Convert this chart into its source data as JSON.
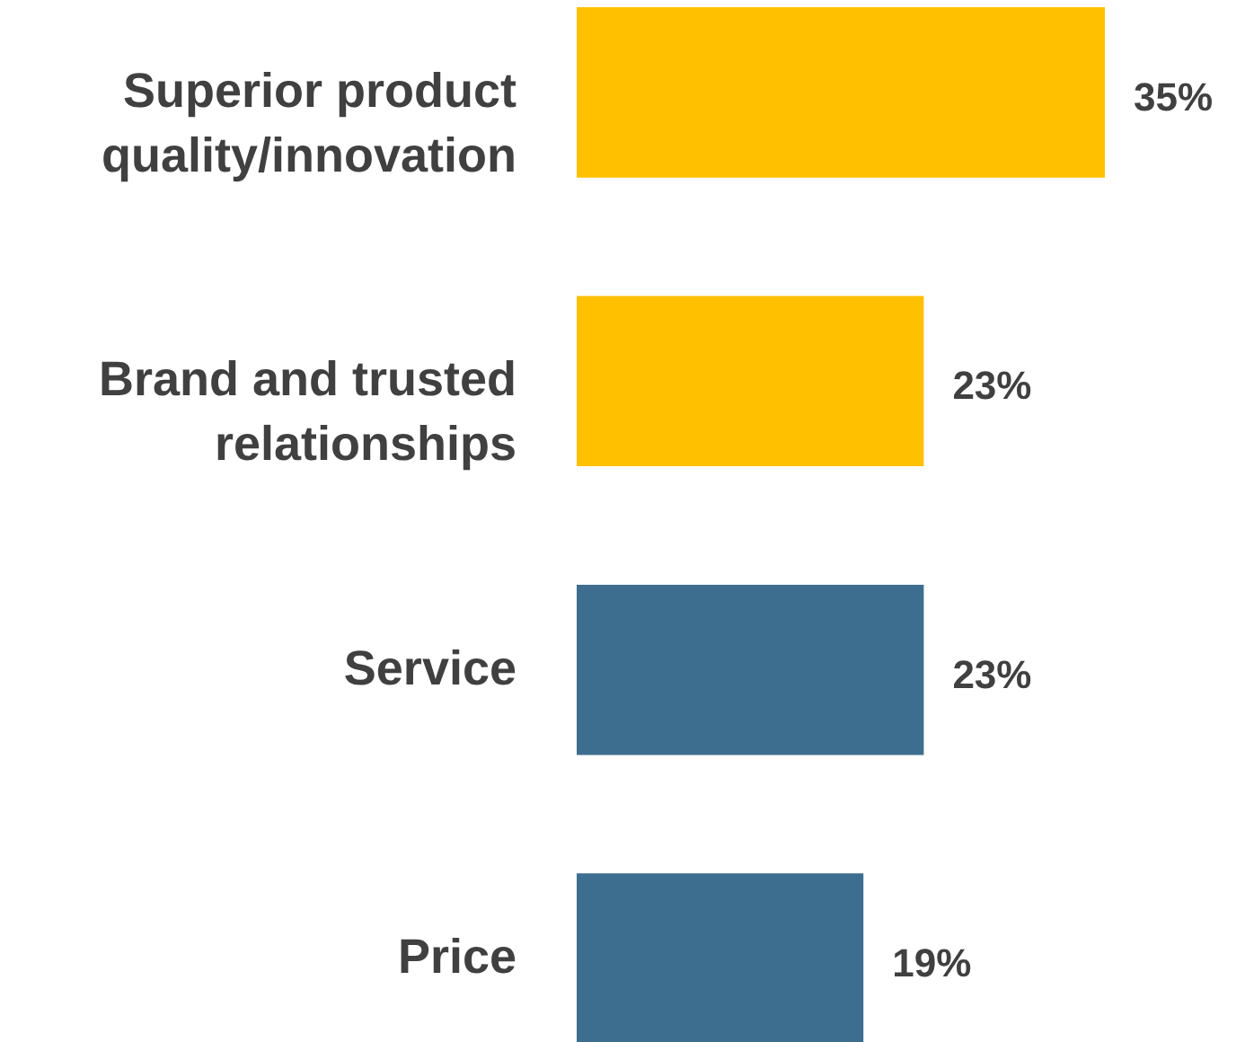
{
  "chart_data": {
    "type": "bar",
    "orientation": "horizontal",
    "categories": [
      "Superior product quality/innovation",
      "Brand and trusted relationships",
      "Service",
      "Price"
    ],
    "values": [
      35,
      23,
      23,
      19
    ],
    "value_labels": [
      "35%",
      "23%",
      "23%",
      "19%"
    ],
    "colors": [
      "#ffc000",
      "#ffc000",
      "#3d6e8f",
      "#3d6e8f"
    ]
  }
}
